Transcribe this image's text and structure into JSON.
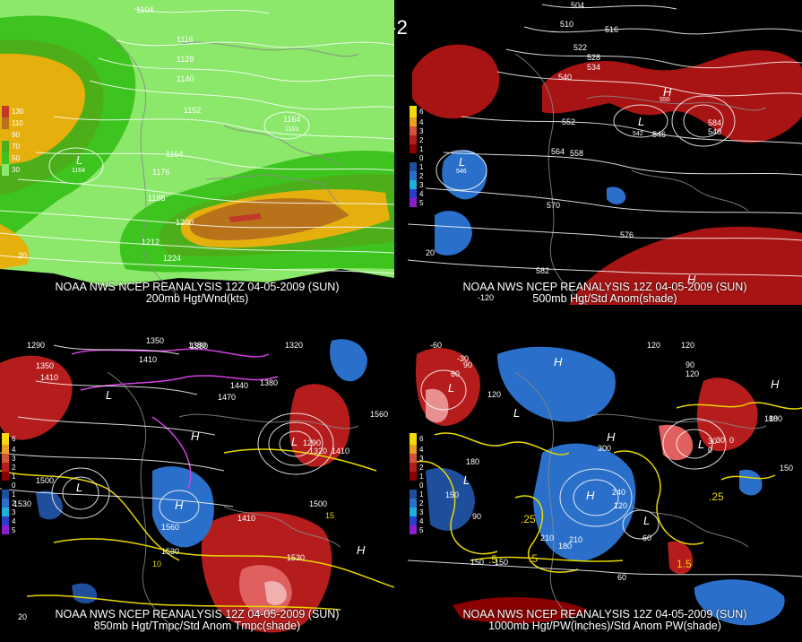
{
  "title": "12Z 04-05-2009 (SUN)",
  "panels": [
    {
      "caption1": "NOAA NWS NCEP REANALYSIS 12Z 04-05-2009 (SUN)",
      "caption2": "200mb Hgt/Wnd(kts)",
      "legend": [
        {
          "label": "130",
          "color": "#c0392b"
        },
        {
          "label": "110",
          "color": "#b8731a"
        },
        {
          "label": "90",
          "color": "#e5b00e"
        },
        {
          "label": "70",
          "color": "#4caf1a"
        },
        {
          "label": "50",
          "color": "#3ec41e"
        },
        {
          "label": "30",
          "color": "#8be86a"
        }
      ],
      "contours": [
        "1104",
        "1116",
        "1128",
        "1140",
        "1152",
        "1164",
        "1176",
        "1188",
        "1200",
        "1212",
        "1224"
      ],
      "extra_labels": [
        "1164",
        "1163",
        "1164",
        "20"
      ],
      "centers": [
        "L"
      ]
    },
    {
      "caption1": "NOAA NWS NCEP REANALYSIS 12Z 04-05-2009 (SUN)",
      "caption2": "500mb Hgt/Std Anom(shade)",
      "legend": [
        {
          "label": "6",
          "color": "#f5d90a"
        },
        {
          "label": "4",
          "color": "#e8a020"
        },
        {
          "label": "3",
          "color": "#d2543a"
        },
        {
          "label": "2",
          "color": "#b51d1d"
        },
        {
          "label": "1",
          "color": "#8b0000"
        },
        {
          "label": "0",
          "color": "#000000"
        },
        {
          "label": "1",
          "color": "#1f4f9c"
        },
        {
          "label": "2",
          "color": "#2a6fc9"
        },
        {
          "label": "3",
          "color": "#1fb0d8"
        },
        {
          "label": "4",
          "color": "#2a3ec9"
        },
        {
          "label": "5",
          "color": "#8a1fc9"
        }
      ],
      "contours": [
        "504",
        "510",
        "516",
        "522",
        "528",
        "534",
        "540",
        "546",
        "552",
        "558",
        "564",
        "570",
        "576",
        "582"
      ],
      "extra_labels": [
        "546",
        "542",
        "550",
        "584",
        "540",
        "-120",
        "20"
      ],
      "centers": [
        "H",
        "L",
        "L",
        "H"
      ]
    },
    {
      "caption1": "NOAA NWS NCEP REANALYSIS 12Z 04-05-2009 (SUN)",
      "caption2": "850mb Hgt/Tmpc/Std Anom Tmpc(shade)",
      "legend": [
        {
          "label": "6",
          "color": "#f5d90a"
        },
        {
          "label": "4",
          "color": "#e8a020"
        },
        {
          "label": "3",
          "color": "#d2543a"
        },
        {
          "label": "2",
          "color": "#b51d1d"
        },
        {
          "label": "1",
          "color": "#8b0000"
        },
        {
          "label": "0",
          "color": "#000000"
        },
        {
          "label": "1",
          "color": "#1f4f9c"
        },
        {
          "label": "2",
          "color": "#2a6fc9"
        },
        {
          "label": "3",
          "color": "#1fb0d8"
        },
        {
          "label": "4",
          "color": "#2a3ec9"
        },
        {
          "label": "5",
          "color": "#8a1fc9"
        }
      ],
      "contours": [
        "1350",
        "1380",
        "1410",
        "1440",
        "1470",
        "1500",
        "1530",
        "1560"
      ],
      "extra_labels": [
        "1290",
        "1320",
        "1380",
        "1410",
        "1350",
        "1500",
        "1530",
        "1380",
        "1560",
        "1410",
        "1530",
        "15",
        "10",
        "1290",
        "1320",
        "1410",
        "20"
      ],
      "centers": [
        "L",
        "H",
        "H",
        "L",
        "H",
        "L"
      ]
    },
    {
      "caption1": "NOAA NWS NCEP REANALYSIS 12Z 04-05-2009 (SUN)",
      "caption2": "1000mb Hgt/PW(inches)/Std Anom PW(shade)",
      "legend": [
        {
          "label": "6",
          "color": "#f5d90a"
        },
        {
          "label": "4",
          "color": "#e8a020"
        },
        {
          "label": "3",
          "color": "#d2543a"
        },
        {
          "label": "2",
          "color": "#b51d1d"
        },
        {
          "label": "1",
          "color": "#8b0000"
        },
        {
          "label": "0",
          "color": "#000000"
        },
        {
          "label": "1",
          "color": "#1f4f9c"
        },
        {
          "label": "2",
          "color": "#2a6fc9"
        },
        {
          "label": "3",
          "color": "#1fb0d8"
        },
        {
          "label": "4",
          "color": "#2a3ec9"
        },
        {
          "label": "5",
          "color": "#8a1fc9"
        }
      ],
      "contours": [
        "-60",
        "-30",
        "60",
        "120",
        "180",
        "210",
        "240",
        "300",
        "150",
        "90",
        "30",
        "0"
      ],
      "extra_labels": [
        "120",
        "90",
        "180",
        "150",
        "120",
        "90",
        "150",
        "180",
        "210",
        "120",
        "60",
        "180",
        "30",
        "0",
        "150",
        "60",
        "120",
        ".25",
        ".25",
        ".5",
        "1.5",
        ".5"
      ],
      "centers": [
        "L",
        "H",
        "L",
        "H",
        "L",
        "H",
        "L",
        "L",
        "H"
      ]
    }
  ]
}
